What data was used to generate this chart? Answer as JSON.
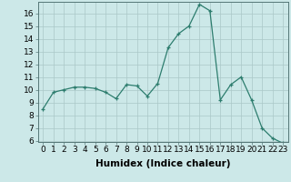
{
  "x": [
    0,
    1,
    2,
    3,
    4,
    5,
    6,
    7,
    8,
    9,
    10,
    11,
    12,
    13,
    14,
    15,
    16,
    17,
    18,
    19,
    20,
    21,
    22,
    23
  ],
  "y": [
    8.5,
    9.8,
    10.0,
    10.2,
    10.2,
    10.1,
    9.8,
    9.3,
    10.4,
    10.3,
    9.5,
    10.5,
    13.3,
    14.4,
    15.0,
    16.7,
    16.2,
    9.2,
    10.4,
    11.0,
    9.2,
    7.0,
    6.2,
    5.8
  ],
  "line_color": "#2d7d6e",
  "marker": "+",
  "marker_size": 3,
  "bg_color": "#cce8e8",
  "grid_color": "#aac8c8",
  "xlabel": "Humidex (Indice chaleur)",
  "xlim": [
    -0.5,
    23.5
  ],
  "ylim": [
    5.9,
    16.9
  ],
  "yticks": [
    6,
    7,
    8,
    9,
    10,
    11,
    12,
    13,
    14,
    15,
    16
  ],
  "xticks": [
    0,
    1,
    2,
    3,
    4,
    5,
    6,
    7,
    8,
    9,
    10,
    11,
    12,
    13,
    14,
    15,
    16,
    17,
    18,
    19,
    20,
    21,
    22,
    23
  ],
  "xlabel_fontsize": 7.5,
  "tick_fontsize": 6.5
}
